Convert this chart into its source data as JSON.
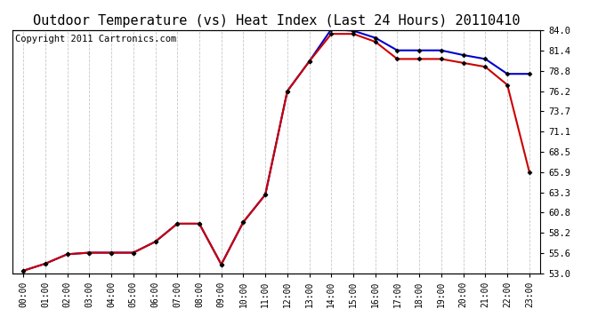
{
  "title": "Outdoor Temperature (vs) Heat Index (Last 24 Hours) 20110410",
  "copyright": "Copyright 2011 Cartronics.com",
  "x_labels": [
    "00:00",
    "01:00",
    "02:00",
    "03:00",
    "04:00",
    "05:00",
    "06:00",
    "07:00",
    "08:00",
    "09:00",
    "10:00",
    "11:00",
    "12:00",
    "13:00",
    "14:00",
    "15:00",
    "16:00",
    "17:00",
    "18:00",
    "19:00",
    "20:00",
    "21:00",
    "22:00",
    "23:00"
  ],
  "temp_red": [
    53.3,
    54.2,
    55.4,
    55.6,
    55.6,
    55.6,
    57.0,
    59.3,
    59.3,
    54.1,
    59.5,
    63.0,
    76.2,
    80.0,
    83.5,
    83.5,
    82.5,
    80.3,
    80.3,
    80.3,
    79.8,
    79.3,
    77.0,
    65.9
  ],
  "heat_blue": [
    53.3,
    54.2,
    55.4,
    55.6,
    55.6,
    55.6,
    57.0,
    59.3,
    59.3,
    54.1,
    59.5,
    63.0,
    76.2,
    80.0,
    84.1,
    83.9,
    83.0,
    81.4,
    81.4,
    81.4,
    80.8,
    80.3,
    78.4,
    78.4
  ],
  "ylim_min": 53.0,
  "ylim_max": 84.0,
  "y_ticks": [
    53.0,
    55.6,
    58.2,
    60.8,
    63.3,
    65.9,
    68.5,
    71.1,
    73.7,
    76.2,
    78.8,
    81.4,
    84.0
  ],
  "bg_color": "#ffffff",
  "grid_color": "#c8c8c8",
  "red_color": "#cc0000",
  "blue_color": "#0000cc",
  "title_fontsize": 11,
  "copyright_fontsize": 7.5,
  "tick_fontsize": 7,
  "ytick_fontsize": 7.5
}
